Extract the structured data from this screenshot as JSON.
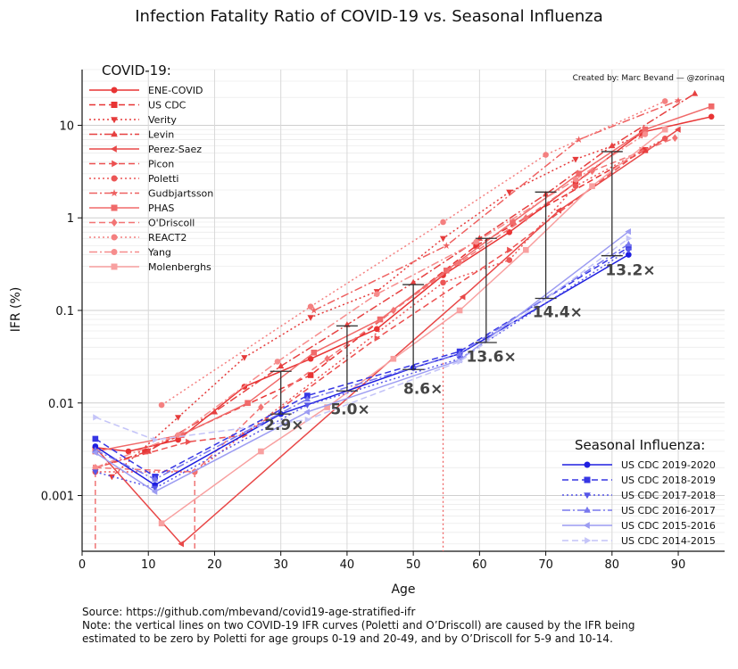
{
  "chart_data": {
    "type": "line",
    "title": "Infection Fatality Ratio of COVID-19 vs. Seasonal Influenza",
    "credit": "Created by: Marc Bevand — @zorinaq",
    "xlabel": "Age",
    "ylabel": "IFR (%)",
    "xlim": [
      0,
      97
    ],
    "ylim": [
      0.00025,
      40
    ],
    "yscale": "log",
    "x_ticks": [
      0,
      10,
      20,
      30,
      40,
      50,
      60,
      70,
      80,
      90
    ],
    "y_ticks": [
      {
        "value": 0.001,
        "label": "0.001"
      },
      {
        "value": 0.01,
        "label": "0.01"
      },
      {
        "value": 0.1,
        "label": "0.1"
      },
      {
        "value": 1,
        "label": "1"
      },
      {
        "value": 10,
        "label": "10"
      }
    ],
    "grid": true,
    "legend_covid_title": "COVID-19:",
    "legend_flu_title": "Seasonal Influenza:",
    "covid_series": [
      {
        "name": "ENE-COVID",
        "color": "#e83434",
        "dash": "",
        "marker": "circle",
        "points": [
          [
            2,
            0.0033
          ],
          [
            7,
            0.003
          ],
          [
            14.5,
            0.004
          ],
          [
            24.5,
            0.015
          ],
          [
            34.5,
            0.03
          ],
          [
            44.5,
            0.063
          ],
          [
            54.5,
            0.24
          ],
          [
            64.5,
            0.7
          ],
          [
            74.5,
            2.4
          ],
          [
            84.5,
            8.4
          ],
          [
            95,
            12.4
          ]
        ]
      },
      {
        "name": "US CDC",
        "color": "#e83434",
        "dash": "7,4",
        "marker": "square",
        "points": [
          [
            9.5,
            0.003
          ],
          [
            34.5,
            0.02
          ],
          [
            59.5,
            0.5
          ],
          [
            85,
            5.4
          ]
        ]
      },
      {
        "name": "Verity",
        "color": "#e53b3b",
        "dash": "2,3",
        "marker": "tri-down",
        "points": [
          [
            4.5,
            0.0016
          ],
          [
            14.5,
            0.007
          ],
          [
            24.5,
            0.031
          ],
          [
            34.5,
            0.084
          ],
          [
            44.5,
            0.16
          ],
          [
            54.5,
            0.6
          ],
          [
            64.5,
            1.9
          ],
          [
            74.5,
            4.3
          ],
          [
            84.5,
            7.8
          ]
        ]
      },
      {
        "name": "Levin",
        "color": "#e64040",
        "dash": "9,3,2,3",
        "marker": "tri-up",
        "points": [
          [
            2,
            0.002
          ],
          [
            10,
            0.003
          ],
          [
            20,
            0.008
          ],
          [
            30,
            0.025
          ],
          [
            40,
            0.07
          ],
          [
            50,
            0.2
          ],
          [
            60,
            0.6
          ],
          [
            70,
            1.8
          ],
          [
            80,
            6
          ],
          [
            92.5,
            22
          ]
        ]
      },
      {
        "name": "Perez-Saez",
        "color": "#e84848",
        "dash": "",
        "marker": "tri-left",
        "points": [
          [
            2,
            0.0033
          ],
          [
            15,
            0.0003
          ],
          [
            57.5,
            0.14
          ],
          [
            72,
            1.2
          ],
          [
            90,
            9
          ]
        ]
      },
      {
        "name": "Picon",
        "color": "#ec5050",
        "dash": "7,4",
        "marker": "tri-right",
        "points": [
          [
            2,
            0.002
          ],
          [
            16,
            0.0038
          ],
          [
            24.5,
            0.0045
          ],
          [
            44.5,
            0.05
          ],
          [
            64.5,
            0.45
          ],
          [
            84.5,
            5.4
          ]
        ]
      },
      {
        "name": "Poletti",
        "color": "#ec5656",
        "dash": "2,3",
        "marker": "circle",
        "points": [
          [
            2,
            0.0018
          ],
          [
            17,
            0.0018
          ],
          [
            54.5,
            0.2
          ],
          [
            64.5,
            0.35
          ],
          [
            74.5,
            2.2
          ],
          [
            88,
            7.2
          ]
        ]
      },
      {
        "name": "Gudbjartsson",
        "color": "#ee6060",
        "dash": "9,3,2,3",
        "marker": "star",
        "points": [
          [
            35,
            0.1
          ],
          [
            55,
            0.5
          ],
          [
            75,
            7
          ],
          [
            90,
            18.5
          ]
        ]
      },
      {
        "name": "PHAS",
        "color": "#f06a6a",
        "dash": "",
        "marker": "square",
        "points": [
          [
            2,
            0.003
          ],
          [
            15,
            0.0045
          ],
          [
            25,
            0.01
          ],
          [
            35,
            0.035
          ],
          [
            45,
            0.08
          ],
          [
            55,
            0.27
          ],
          [
            65,
            0.9
          ],
          [
            75,
            3
          ],
          [
            85,
            9
          ],
          [
            95,
            16
          ]
        ]
      },
      {
        "name": "O'Driscoll",
        "color": "#f27474",
        "dash": "7,4",
        "marker": "diamond",
        "points": [
          [
            2,
            0.002
          ],
          [
            17,
            0.0018
          ],
          [
            27,
            0.009
          ],
          [
            37,
            0.03
          ],
          [
            47,
            0.1
          ],
          [
            57,
            0.33
          ],
          [
            67,
            1.0
          ],
          [
            77,
            3.2
          ],
          [
            89.5,
            7.3
          ]
        ]
      },
      {
        "name": "REACT2",
        "color": "#f48080",
        "dash": "2,3",
        "marker": "circle",
        "points": [
          [
            12,
            0.0095
          ],
          [
            34.5,
            0.11
          ],
          [
            54.5,
            0.9
          ],
          [
            70,
            4.8
          ],
          [
            88,
            18.2
          ]
        ]
      },
      {
        "name": "Yang",
        "color": "#f68c8c",
        "dash": "9,3,2,3",
        "marker": "circle",
        "points": [
          [
            2,
            0.002
          ],
          [
            14.5,
            0.0045
          ],
          [
            29.5,
            0.028
          ],
          [
            44.5,
            0.15
          ],
          [
            59.5,
            0.55
          ],
          [
            74.5,
            2.6
          ],
          [
            85,
            8
          ]
        ]
      },
      {
        "name": "Molenberghs",
        "color": "#f8a0a0",
        "dash": "",
        "marker": "square",
        "points": [
          [
            12,
            0.0005
          ],
          [
            27,
            0.003
          ],
          [
            37,
            0.009
          ],
          [
            47,
            0.03
          ],
          [
            57,
            0.1
          ],
          [
            67,
            0.45
          ],
          [
            77,
            2.2
          ],
          [
            88,
            9
          ]
        ]
      }
    ],
    "flu_series": [
      {
        "name": "US CDC 2019-2020",
        "color": "#1e1ee0",
        "dash": "",
        "marker": "circle",
        "points": [
          [
            2,
            0.0034
          ],
          [
            11,
            0.0013
          ],
          [
            30,
            0.0076
          ],
          [
            50,
            0.024
          ],
          [
            57,
            0.034
          ],
          [
            82.5,
            0.4
          ]
        ]
      },
      {
        "name": "US CDC 2018-2019",
        "color": "#3636e4",
        "dash": "7,4",
        "marker": "square",
        "points": [
          [
            2,
            0.0041
          ],
          [
            11,
            0.0016
          ],
          [
            34,
            0.012
          ],
          [
            57,
            0.036
          ],
          [
            82.5,
            0.48
          ]
        ]
      },
      {
        "name": "US CDC 2017-2018",
        "color": "#5656e8",
        "dash": "2,3",
        "marker": "tri-down",
        "points": [
          [
            2,
            0.0018
          ],
          [
            11,
            0.0012
          ],
          [
            34,
            0.0095
          ],
          [
            57,
            0.03
          ],
          [
            82.5,
            0.45
          ]
        ]
      },
      {
        "name": "US CDC 2016-2017",
        "color": "#7878ee",
        "dash": "9,3,2,3",
        "marker": "tri-up",
        "points": [
          [
            2,
            0.0031
          ],
          [
            11,
            0.0015
          ],
          [
            34,
            0.011
          ],
          [
            57,
            0.034
          ],
          [
            82.5,
            0.52
          ]
        ]
      },
      {
        "name": "US CDC 2015-2016",
        "color": "#9c9cf2",
        "dash": "",
        "marker": "tri-left",
        "points": [
          [
            2,
            0.0029
          ],
          [
            11,
            0.0011
          ],
          [
            34,
            0.008
          ],
          [
            57,
            0.029
          ],
          [
            82.5,
            0.71
          ]
        ]
      },
      {
        "name": "US CDC 2014-2015",
        "color": "#c4c4f8",
        "dash": "7,4",
        "marker": "tri-right",
        "points": [
          [
            2,
            0.007
          ],
          [
            11,
            0.004
          ],
          [
            34,
            0.0066
          ],
          [
            57,
            0.028
          ],
          [
            82.5,
            0.6
          ]
        ]
      }
    ],
    "ratio_bars": [
      {
        "x": 30,
        "low": 0.0076,
        "high": 0.022,
        "label": "2.9×",
        "label_x": 27.5,
        "label_y": 0.0051
      },
      {
        "x": 40,
        "low": 0.0135,
        "high": 0.068,
        "label": "5.0×",
        "label_x": 37.5,
        "label_y": 0.0075
      },
      {
        "x": 50,
        "low": 0.023,
        "high": 0.19,
        "label": "8.6×",
        "label_x": 48.5,
        "label_y": 0.0125
      },
      {
        "x": 61,
        "low": 0.045,
        "high": 0.6,
        "label": "13.6×",
        "label_x": 58,
        "label_y": 0.028
      },
      {
        "x": 70,
        "low": 0.135,
        "high": 1.9,
        "label": "14.4×",
        "label_x": 68,
        "label_y": 0.085
      },
      {
        "x": 80,
        "low": 0.39,
        "high": 5.2,
        "label": "13.2×",
        "label_x": 79,
        "label_y": 0.24
      }
    ],
    "zero_drop_lines": [
      {
        "x": 2,
        "top": 0.0018
      },
      {
        "x": 17,
        "top": 0.0018
      },
      {
        "x": 54.5,
        "top": 0.2
      }
    ]
  },
  "footnotes": [
    "Source: https://github.com/mbevand/covid19-age-stratified-ifr",
    "Note: the vertical lines on two COVID-19 IFR curves (Poletti and O’Driscoll) are caused by the IFR being",
    "estimated to be zero by Poletti for age groups 0-19 and 20-49, and by O’Driscoll for 5-9 and 10-14."
  ]
}
